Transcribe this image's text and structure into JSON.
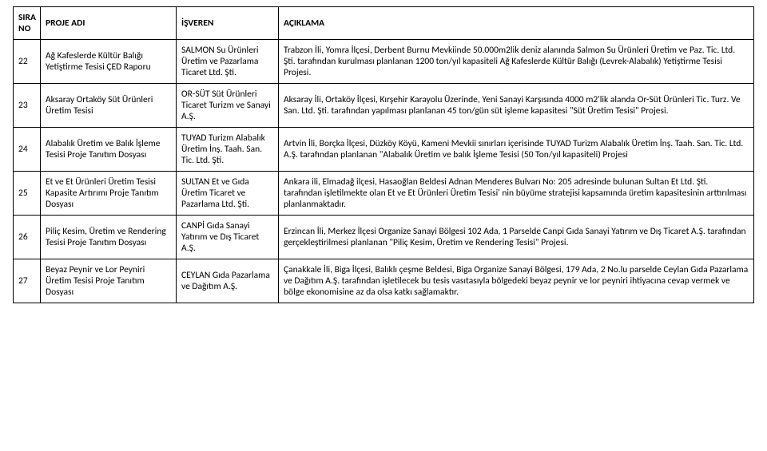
{
  "header": {
    "no": "SIRA NO",
    "proj": "PROJE ADI",
    "emp": "İŞVEREN",
    "desc": "AÇIKLAMA"
  },
  "rows": [
    {
      "no": "22",
      "proj": "Ağ Kafeslerde Kültür Balığı Yetiştirme Tesisi ÇED Raporu",
      "emp": "SALMON Su Ürünleri Üretim ve Pazarlama Ticaret Ltd. Şti.",
      "desc": "Trabzon İli, Yomra İlçesi, Derbent Burnu Mevkiinde 50.000m2lik deniz alanında Salmon Su Ürünleri Üretim ve Paz. Tic. Ltd. Şti. tarafından kurulması planlanan 1200 ton/yıl kapasiteli Ağ Kafeslerde Kültür Balığı (Levrek-Alabalık) Yetiştirme Tesisi Projesi."
    },
    {
      "no": "23",
      "proj": "Aksaray Ortaköy Süt Ürünleri Üretim Tesisi",
      "emp": "OR-SÜT Süt Ürünleri Ticaret Turizm ve Sanayi A.Ş.",
      "desc": "Aksaray İli, Ortaköy İlçesi, Kırşehir Karayolu Üzerinde, Yeni Sanayi Karşısında 4000 m2'lik alanda Or-Süt Ürünleri Tic. Turz. Ve San. Ltd. Şti. tarafından yapılması planlanan 45 ton/gün süt işleme kapasitesi \"Süt Üretim Tesisi\" Projesi."
    },
    {
      "no": "24",
      "proj": "Alabalık Üretim ve Balık İşleme Tesisi Proje Tanıtım Dosyası",
      "emp": "TUYAD Turizm Alabalık Üretim İnş. Taah. San. Tic. Ltd. Şti.",
      "desc": "Artvin İli, Borçka İlçesi, Düzköy Köyü, Kameni Mevkii sınırları içerisinde TUYAD Turizm Alabalık Üretim İnş. Taah. San. Tic. Ltd. A.Ş. tarafından planlanan \"Alabalık Üretim ve balık İşleme Tesisi (50 Ton/yıl kapasiteli) Projesi"
    },
    {
      "no": "25",
      "proj": "Et ve Et Ürünleri Üretim Tesisi Kapasite Artırımı Proje Tanıtım Dosyası",
      "emp": "SULTAN Et ve Gıda Üretim Ticaret ve Pazarlama Ltd. Şti.",
      "desc": "Ankara ili, Elmadağ ilçesi, Hasaoğlan Beldesi Adnan Menderes Bulvarı No: 205 adresinde bulunan Sultan Et Ltd. Şti. tarafından işletilmekte olan Et ve Et Ürünleri Üretim Tesisi' nin büyüme stratejisi kapsamında üretim kapasitesinin arttırılması planlanmaktadır."
    },
    {
      "no": "26",
      "proj": "Piliç Kesim, Üretim ve Rendering Tesisi Proje Tanıtım Dosyası",
      "emp": "CANPİ Gıda Sanayi Yatırım ve Dış Ticaret A.Ş.",
      "desc": "Erzincan İli, Merkez İlçesi Organize Sanayi Bölgesi 102 Ada, 1 Parselde Canpi Gıda Sanayi Yatırım ve Dış Ticaret A.Ş. tarafından gerçekleştirilmesi planlanan \"Piliç Kesim, Üretim ve Rendering Tesisi\" Projesi."
    },
    {
      "no": "27",
      "proj": "Beyaz Peynir ve Lor Peyniri Üretim Tesisi Proje Tanıtım Dosyası",
      "emp": "CEYLAN Gıda Pazarlama ve Dağıtım A.Ş.",
      "desc": "Çanakkale İli, Biga İlçesi, Balıklı çeşme Beldesi, Biga Organize Sanayi Bölgesi, 179 Ada, 2 No.lu parselde Ceylan Gıda Pazarlama ve Dağıtım A.Ş. tarafından işletilecek bu tesis vasıtasıyla bölgedeki beyaz peynir ve lor peyniri ihtiyacına cevap vermek ve bölge ekonomisine az da olsa katkı sağlamaktır."
    }
  ]
}
